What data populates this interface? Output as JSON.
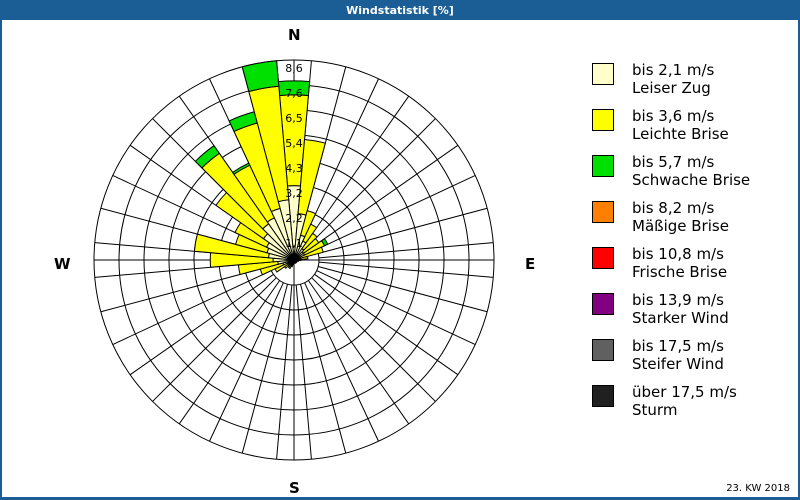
{
  "header": {
    "title": "Windstatistik [%]"
  },
  "compass": {
    "n": "N",
    "e": "E",
    "s": "S",
    "w": "W"
  },
  "footer": {
    "period": "23. KW 2018"
  },
  "legend": [
    {
      "range": "bis 2,1 m/s",
      "name": "Leiser Zug",
      "color": "#ffffcc"
    },
    {
      "range": "bis 3,6 m/s",
      "name": "Leichte Brise",
      "color": "#ffff00"
    },
    {
      "range": "bis 5,7 m/s",
      "name": "Schwache Brise",
      "color": "#00e000"
    },
    {
      "range": "bis 8,2 m/s",
      "name": "Mäßige Brise",
      "color": "#ff8000"
    },
    {
      "range": "bis 10,8 m/s",
      "name": "Frische Brise",
      "color": "#ff0000"
    },
    {
      "range": "bis 13,9 m/s",
      "name": "Starker Wind",
      "color": "#800080"
    },
    {
      "range": "bis 17,5 m/s",
      "name": "Steifer Wind",
      "color": "#606060"
    },
    {
      "range": "über 17,5 m/s",
      "name": "Sturm",
      "color": "#202020"
    }
  ],
  "chart_data": {
    "type": "wind-rose",
    "title": "Windstatistik [%]",
    "radial_max": 8.6,
    "radial_ticks": [
      "1,1",
      "2,2",
      "3,2",
      "4,3",
      "5,4",
      "6,5",
      "7,6",
      "8,6"
    ],
    "sector_width_deg": 10,
    "series_names": [
      "bis 2,1 m/s",
      "bis 3,6 m/s",
      "bis 5,7 m/s",
      "bis 8,2 m/s",
      "bis 10,8 m/s",
      "bis 13,9 m/s",
      "bis 17,5 m/s",
      "über 17,5 m/s"
    ],
    "directions": [
      {
        "angle": 0,
        "cumulative": [
          3.2,
          7.1,
          7.7
        ]
      },
      {
        "angle": 10,
        "cumulative": [
          2.0,
          5.2
        ]
      },
      {
        "angle": 20,
        "cumulative": [
          1.1,
          2.2
        ]
      },
      {
        "angle": 30,
        "cumulative": [
          0.9,
          1.7
        ]
      },
      {
        "angle": 40,
        "cumulative": [
          0.6,
          1.4
        ]
      },
      {
        "angle": 50,
        "cumulative": [
          0.5,
          1.3
        ]
      },
      {
        "angle": 60,
        "cumulative": [
          0.5,
          1.45,
          1.6
        ]
      },
      {
        "angle": 70,
        "cumulative": [
          0.3,
          1.3
        ]
      },
      {
        "angle": 80,
        "cumulative": [
          0.3,
          0.6
        ]
      },
      {
        "angle": 90,
        "cumulative": [
          0.15,
          0.3
        ]
      },
      {
        "angle": 100,
        "cumulative": [
          0.1,
          0.2
        ]
      },
      {
        "angle": 110,
        "cumulative": [
          0.1,
          0.15
        ]
      },
      {
        "angle": 120,
        "cumulative": [
          0.1
        ]
      },
      {
        "angle": 130,
        "cumulative": [
          0.1
        ]
      },
      {
        "angle": 140,
        "cumulative": [
          0.05
        ]
      },
      {
        "angle": 150,
        "cumulative": [
          0.1
        ]
      },
      {
        "angle": 160,
        "cumulative": [
          0.05
        ]
      },
      {
        "angle": 170,
        "cumulative": [
          0.1
        ]
      },
      {
        "angle": 180,
        "cumulative": [
          0.1
        ]
      },
      {
        "angle": 190,
        "cumulative": [
          0.1,
          0.2
        ]
      },
      {
        "angle": 200,
        "cumulative": [
          0.1,
          0.3
        ]
      },
      {
        "angle": 210,
        "cumulative": [
          0.2,
          0.4
        ]
      },
      {
        "angle": 220,
        "cumulative": [
          0.2,
          0.35
        ]
      },
      {
        "angle": 230,
        "cumulative": [
          0.2,
          0.5
        ]
      },
      {
        "angle": 240,
        "cumulative": [
          0.3,
          0.9
        ]
      },
      {
        "angle": 250,
        "cumulative": [
          0.5,
          1.5
        ]
      },
      {
        "angle": 260,
        "cumulative": [
          0.7,
          2.4
        ]
      },
      {
        "angle": 270,
        "cumulative": [
          0.9,
          3.6
        ]
      },
      {
        "angle": 280,
        "cumulative": [
          1.1,
          4.3
        ]
      },
      {
        "angle": 290,
        "cumulative": [
          1.2,
          2.6
        ]
      },
      {
        "angle": 300,
        "cumulative": [
          1.3,
          2.8
        ]
      },
      {
        "angle": 310,
        "cumulative": [
          1.6,
          4.1
        ]
      },
      {
        "angle": 320,
        "cumulative": [
          1.9,
          5.6,
          6.0
        ]
      },
      {
        "angle": 330,
        "cumulative": [
          2.0,
          4.5,
          4.6
        ]
      },
      {
        "angle": 340,
        "cumulative": [
          2.3,
          6.1,
          6.6
        ]
      },
      {
        "angle": 350,
        "cumulative": [
          2.6,
          7.5,
          8.6
        ]
      }
    ]
  }
}
